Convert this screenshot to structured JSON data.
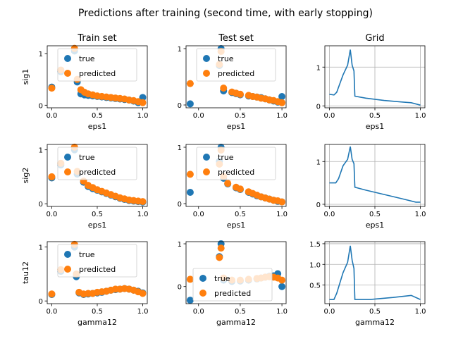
{
  "figure": {
    "suptitle": "Predictions after training (second time, with early stopping)"
  },
  "colors": {
    "true": "#1f77b4",
    "predicted": "#ff7f0e",
    "line": "#1f77b4",
    "grid": "#b0b0b0"
  },
  "chart_data": [
    {
      "type": "scatter",
      "title": "Train set",
      "xlabel": "eps1",
      "ylabel": "sig1",
      "xlim": [
        -0.05,
        1.05
      ],
      "ylim": [
        -0.05,
        1.15
      ],
      "xticks": [
        "0.0",
        "0.5",
        "1.0"
      ],
      "xtick_values": [
        0,
        0.5,
        1
      ],
      "yticks": [
        "0",
        "1"
      ],
      "ytick_values": [
        0,
        1
      ],
      "legend": [
        "true",
        "predicted"
      ],
      "legend_position": "upper-center",
      "grid": false,
      "series": [
        {
          "name": "true",
          "x": [
            0.0,
            0.1,
            0.25,
            0.28,
            0.32,
            0.36,
            0.4,
            0.45,
            0.5,
            0.55,
            0.6,
            0.65,
            0.7,
            0.75,
            0.8,
            0.85,
            0.9,
            0.95,
            1.0
          ],
          "y": [
            0.35,
            0.65,
            1.05,
            0.45,
            0.22,
            0.2,
            0.19,
            0.18,
            0.17,
            0.16,
            0.15,
            0.14,
            0.13,
            0.12,
            0.11,
            0.1,
            0.08,
            0.05,
            0.15
          ]
        },
        {
          "name": "predicted",
          "x": [
            0.0,
            0.1,
            0.25,
            0.28,
            0.32,
            0.36,
            0.4,
            0.45,
            0.5,
            0.55,
            0.6,
            0.65,
            0.7,
            0.75,
            0.8,
            0.85,
            0.9,
            0.95,
            1.0
          ],
          "y": [
            0.33,
            0.68,
            1.1,
            0.5,
            0.3,
            0.25,
            0.22,
            0.2,
            0.18,
            0.17,
            0.16,
            0.15,
            0.14,
            0.13,
            0.12,
            0.1,
            0.09,
            0.07,
            0.05
          ]
        }
      ]
    },
    {
      "type": "scatter",
      "title": "Test set",
      "xlabel": "eps1",
      "ylabel": "",
      "xlim": [
        -0.15,
        1.05
      ],
      "ylim": [
        -0.05,
        1.05
      ],
      "xticks": [
        "0.0",
        "0.5",
        "1.0"
      ],
      "xtick_values": [
        0,
        0.5,
        1
      ],
      "yticks": [
        "0",
        "1"
      ],
      "ytick_values": [
        0,
        1
      ],
      "legend": [
        "true",
        "predicted"
      ],
      "legend_position": "upper-center",
      "grid": false,
      "series": [
        {
          "name": "true",
          "x": [
            -0.1,
            0.25,
            0.27,
            0.3,
            0.4,
            0.45,
            0.5,
            0.6,
            0.65,
            0.7,
            0.75,
            0.8,
            0.85,
            0.9,
            0.95,
            1.0
          ],
          "y": [
            0.02,
            0.7,
            1.0,
            0.25,
            0.22,
            0.2,
            0.18,
            0.16,
            0.15,
            0.14,
            0.13,
            0.11,
            0.09,
            0.07,
            0.05,
            0.15
          ]
        },
        {
          "name": "predicted",
          "x": [
            -0.1,
            0.25,
            0.27,
            0.3,
            0.4,
            0.45,
            0.5,
            0.6,
            0.65,
            0.7,
            0.75,
            0.8,
            0.85,
            0.9,
            0.95,
            1.0
          ],
          "y": [
            0.38,
            0.72,
            0.95,
            0.3,
            0.23,
            0.21,
            0.19,
            0.17,
            0.15,
            0.14,
            0.12,
            0.11,
            0.09,
            0.08,
            0.06,
            0.04
          ]
        }
      ]
    },
    {
      "type": "line",
      "title": "Grid",
      "xlabel": "eps1",
      "ylabel": "",
      "xlim": [
        -0.05,
        1.05
      ],
      "ylim": [
        -0.05,
        1.55
      ],
      "xticks": [
        "0.0",
        "0.5",
        "1.0"
      ],
      "xtick_values": [
        0,
        0.5,
        1
      ],
      "yticks": [
        "0",
        "1"
      ],
      "ytick_values": [
        0,
        1
      ],
      "grid": true,
      "series": [
        {
          "x": [
            0.0,
            0.05,
            0.08,
            0.15,
            0.2,
            0.23,
            0.25,
            0.27,
            0.28,
            0.4,
            0.6,
            0.8,
            0.9,
            1.0
          ],
          "y": [
            0.3,
            0.28,
            0.35,
            0.8,
            1.05,
            1.45,
            1.05,
            0.9,
            0.25,
            0.2,
            0.14,
            0.1,
            0.08,
            0.02
          ]
        }
      ]
    },
    {
      "type": "scatter",
      "title": "",
      "xlabel": "eps1",
      "ylabel": "sig2",
      "xlim": [
        -0.05,
        1.05
      ],
      "ylim": [
        -0.05,
        1.1
      ],
      "xticks": [
        "0.0",
        "0.5",
        "1.0"
      ],
      "xtick_values": [
        0,
        0.5,
        1
      ],
      "yticks": [
        "0",
        "1"
      ],
      "ytick_values": [
        0,
        1
      ],
      "legend": [
        "true",
        "predicted"
      ],
      "legend_position": "upper-center",
      "grid": false,
      "series": [
        {
          "name": "true",
          "x": [
            0.0,
            0.1,
            0.25,
            0.28,
            0.35,
            0.4,
            0.45,
            0.5,
            0.55,
            0.6,
            0.65,
            0.7,
            0.75,
            0.8,
            0.85,
            0.9,
            0.95,
            1.0
          ],
          "y": [
            0.48,
            0.72,
            1.0,
            0.55,
            0.4,
            0.32,
            0.28,
            0.25,
            0.22,
            0.19,
            0.16,
            0.13,
            0.1,
            0.08,
            0.06,
            0.05,
            0.04,
            0.03
          ]
        },
        {
          "name": "predicted",
          "x": [
            0.0,
            0.1,
            0.25,
            0.28,
            0.35,
            0.4,
            0.45,
            0.5,
            0.55,
            0.6,
            0.65,
            0.7,
            0.75,
            0.8,
            0.85,
            0.9,
            0.95,
            1.0
          ],
          "y": [
            0.5,
            0.75,
            1.05,
            0.6,
            0.42,
            0.34,
            0.3,
            0.26,
            0.23,
            0.2,
            0.17,
            0.14,
            0.11,
            0.09,
            0.07,
            0.06,
            0.05,
            0.04
          ]
        }
      ]
    },
    {
      "type": "scatter",
      "title": "",
      "xlabel": "eps1",
      "ylabel": "",
      "xlim": [
        -0.15,
        1.05
      ],
      "ylim": [
        -0.05,
        1.05
      ],
      "xticks": [
        "0.0",
        "0.5",
        "1.0"
      ],
      "xtick_values": [
        0,
        0.5,
        1
      ],
      "yticks": [
        "0",
        "1"
      ],
      "ytick_values": [
        0,
        1
      ],
      "legend": [
        "true",
        "predicted"
      ],
      "legend_position": "upper-center",
      "grid": false,
      "series": [
        {
          "name": "true",
          "x": [
            -0.1,
            0.25,
            0.27,
            0.3,
            0.35,
            0.45,
            0.5,
            0.6,
            0.65,
            0.7,
            0.75,
            0.8,
            0.85,
            0.9,
            0.95,
            1.0
          ],
          "y": [
            0.2,
            0.75,
            1.0,
            0.45,
            0.35,
            0.28,
            0.25,
            0.2,
            0.17,
            0.14,
            0.12,
            0.1,
            0.08,
            0.06,
            0.04,
            0.03
          ]
        },
        {
          "name": "predicted",
          "x": [
            -0.1,
            0.25,
            0.27,
            0.3,
            0.35,
            0.45,
            0.5,
            0.6,
            0.65,
            0.7,
            0.75,
            0.8,
            0.85,
            0.9,
            0.95,
            1.0
          ],
          "y": [
            0.52,
            0.7,
            0.95,
            0.48,
            0.36,
            0.29,
            0.26,
            0.21,
            0.18,
            0.15,
            0.12,
            0.1,
            0.08,
            0.06,
            0.05,
            0.03
          ]
        }
      ]
    },
    {
      "type": "line",
      "title": "",
      "xlabel": "eps1",
      "ylabel": "",
      "xlim": [
        -0.05,
        1.05
      ],
      "ylim": [
        -0.05,
        1.4
      ],
      "xticks": [
        "0.0",
        "0.5",
        "1.0"
      ],
      "xtick_values": [
        0,
        0.5,
        1
      ],
      "yticks": [
        "0",
        "1"
      ],
      "ytick_values": [
        0,
        1
      ],
      "grid": true,
      "series": [
        {
          "x": [
            0.0,
            0.07,
            0.1,
            0.15,
            0.2,
            0.23,
            0.25,
            0.27,
            0.28,
            0.4,
            0.6,
            0.8,
            0.95,
            1.0
          ],
          "y": [
            0.5,
            0.5,
            0.6,
            0.9,
            1.05,
            1.35,
            1.05,
            0.95,
            0.4,
            0.33,
            0.23,
            0.13,
            0.05,
            0.05
          ]
        }
      ]
    },
    {
      "type": "scatter",
      "title": "",
      "xlabel": "gamma12",
      "ylabel": "tau12",
      "xlim": [
        -0.05,
        1.05
      ],
      "ylim": [
        -0.05,
        1.1
      ],
      "xticks": [
        "0.0",
        "0.5",
        "1.0"
      ],
      "xtick_values": [
        0,
        0.5,
        1
      ],
      "yticks": [
        "0",
        "1"
      ],
      "ytick_values": [
        0,
        1
      ],
      "legend": [
        "true",
        "predicted"
      ],
      "legend_position": "upper-center",
      "grid": false,
      "series": [
        {
          "name": "true",
          "x": [
            0.0,
            0.1,
            0.25,
            0.27,
            0.3,
            0.35,
            0.4,
            0.45,
            0.5,
            0.55,
            0.6,
            0.65,
            0.7,
            0.75,
            0.8,
            0.85,
            0.9,
            0.95,
            1.0
          ],
          "y": [
            0.12,
            0.55,
            1.0,
            0.45,
            0.15,
            0.12,
            0.13,
            0.14,
            0.15,
            0.16,
            0.18,
            0.2,
            0.21,
            0.22,
            0.23,
            0.22,
            0.2,
            0.18,
            0.15
          ]
        },
        {
          "name": "predicted",
          "x": [
            0.0,
            0.1,
            0.25,
            0.27,
            0.3,
            0.35,
            0.4,
            0.45,
            0.5,
            0.55,
            0.6,
            0.65,
            0.7,
            0.75,
            0.8,
            0.85,
            0.9,
            0.95,
            1.0
          ],
          "y": [
            0.13,
            0.58,
            1.05,
            0.5,
            0.16,
            0.13,
            0.14,
            0.14,
            0.16,
            0.17,
            0.18,
            0.2,
            0.22,
            0.22,
            0.23,
            0.22,
            0.2,
            0.17,
            0.14
          ]
        }
      ]
    },
    {
      "type": "scatter",
      "title": "",
      "xlabel": "gamma12",
      "ylabel": "",
      "xlim": [
        -0.15,
        1.05
      ],
      "ylim": [
        -0.4,
        1.05
      ],
      "xticks": [
        "0.0",
        "0.5",
        "1.0"
      ],
      "xtick_values": [
        0,
        0.5,
        1
      ],
      "yticks": [
        "0",
        "1"
      ],
      "ytick_values": [
        0,
        1
      ],
      "legend": [
        "true",
        "predicted"
      ],
      "legend_position": "lower-left",
      "grid": false,
      "series": [
        {
          "name": "true",
          "x": [
            -0.1,
            0.25,
            0.27,
            0.3,
            0.4,
            0.5,
            0.6,
            0.7,
            0.75,
            0.8,
            0.85,
            0.9,
            0.95,
            1.0
          ],
          "y": [
            -0.32,
            0.7,
            1.0,
            0.15,
            0.12,
            0.13,
            0.15,
            0.18,
            0.2,
            0.22,
            0.24,
            0.25,
            0.3,
            0.0
          ]
        },
        {
          "name": "predicted",
          "x": [
            -0.1,
            0.25,
            0.27,
            0.3,
            0.4,
            0.5,
            0.6,
            0.7,
            0.75,
            0.8,
            0.85,
            0.9,
            0.95,
            1.0
          ],
          "y": [
            0.17,
            0.68,
            0.9,
            0.2,
            0.15,
            0.15,
            0.17,
            0.19,
            0.2,
            0.22,
            0.23,
            0.22,
            0.2,
            0.15
          ]
        }
      ]
    },
    {
      "type": "line",
      "title": "",
      "xlabel": "gamma12",
      "ylabel": "",
      "xlim": [
        -0.05,
        1.05
      ],
      "ylim": [
        0.05,
        1.55
      ],
      "xticks": [
        "0.0",
        "0.5",
        "1.0"
      ],
      "xtick_values": [
        0,
        0.5,
        1
      ],
      "yticks": [
        "0.5",
        "1.0",
        "1.5"
      ],
      "ytick_values": [
        0.5,
        1.0,
        1.5
      ],
      "grid": true,
      "series": [
        {
          "x": [
            0.0,
            0.05,
            0.08,
            0.15,
            0.2,
            0.23,
            0.25,
            0.27,
            0.28,
            0.45,
            0.7,
            0.9,
            1.0
          ],
          "y": [
            0.15,
            0.15,
            0.3,
            0.8,
            1.05,
            1.45,
            1.1,
            0.9,
            0.15,
            0.15,
            0.2,
            0.25,
            0.15
          ]
        }
      ]
    }
  ]
}
